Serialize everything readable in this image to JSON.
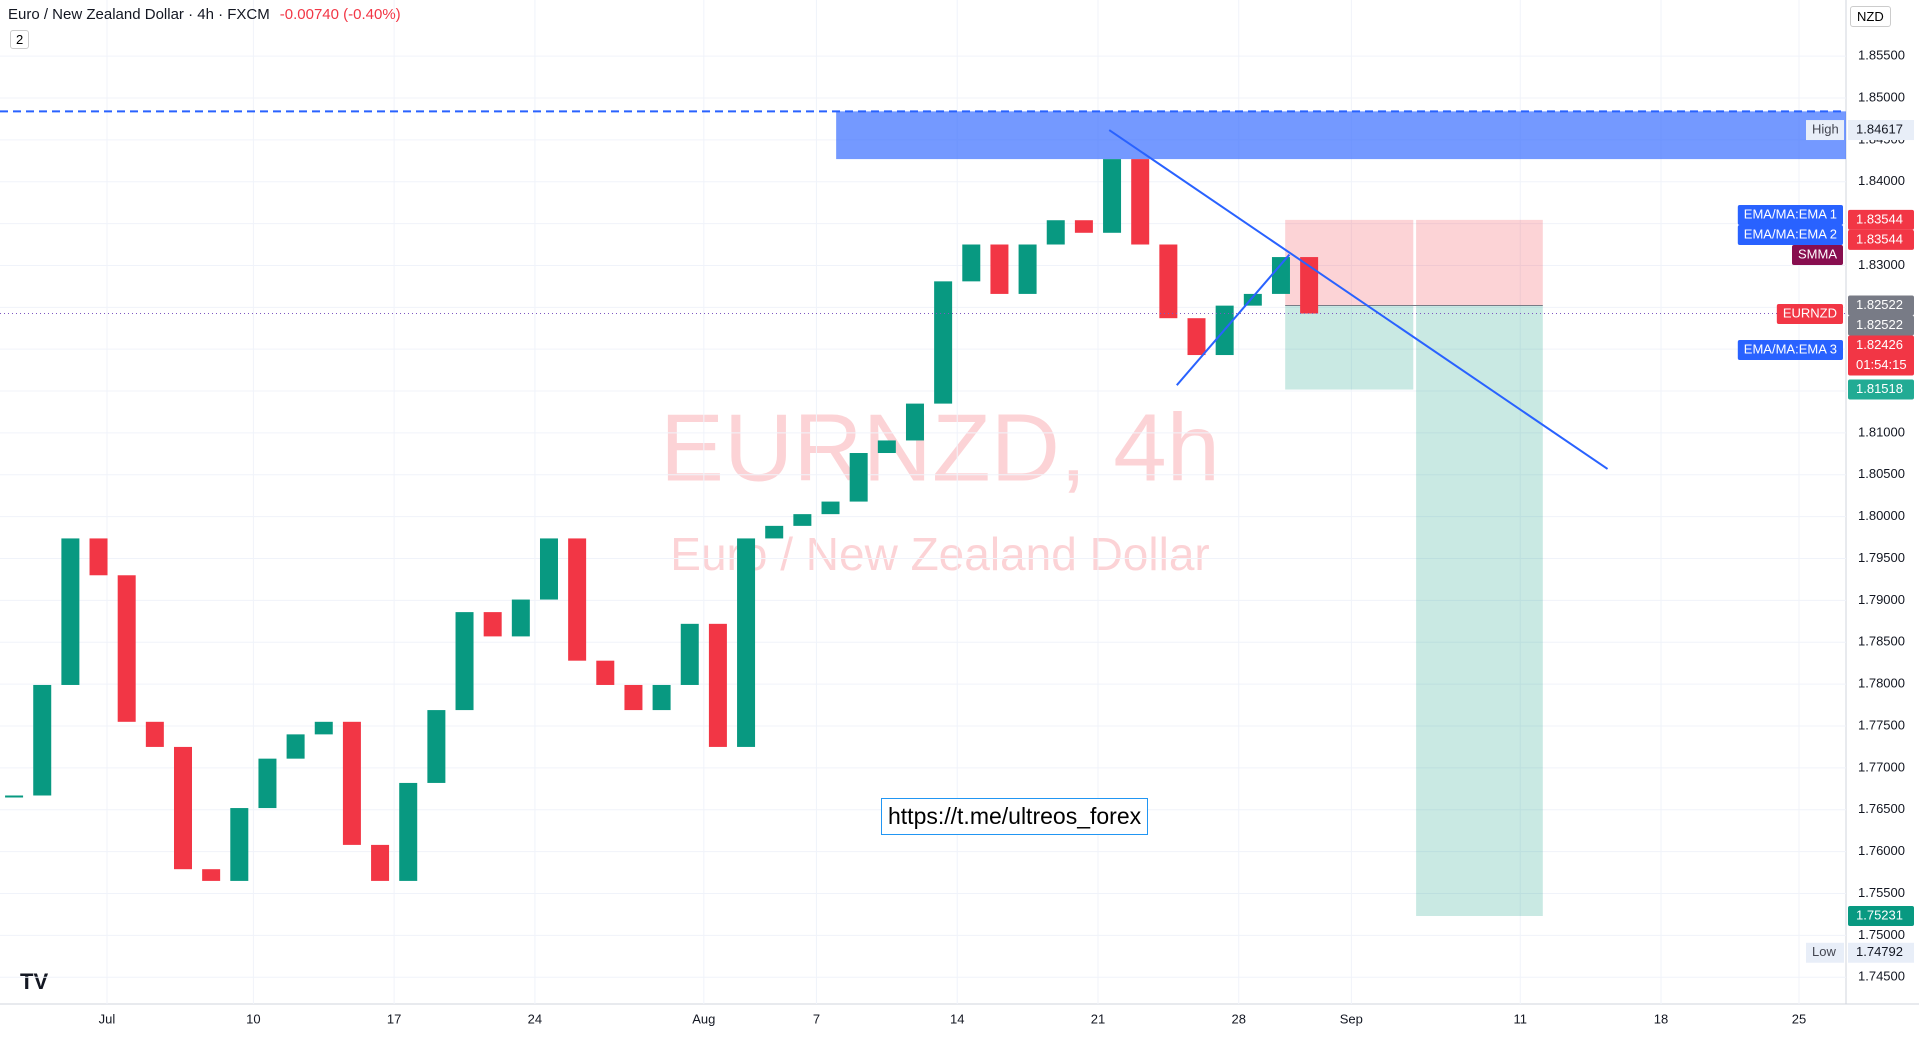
{
  "header": {
    "symbol": "Euro / New Zealand Dollar · 4h · FXCM",
    "change": "-0.00740 (-0.40%)",
    "indicator_count": "2",
    "currency": "NZD"
  },
  "chart_data": {
    "type": "candlestick",
    "watermark": "EURNZD, 4h",
    "watermark_subtitle": "Euro / New Zealand Dollar",
    "annotation": "https://t.me/ultreos_forex",
    "x": [
      0,
      1,
      2,
      3,
      4,
      5,
      6,
      7,
      8,
      9,
      10,
      11,
      12,
      13,
      14,
      15,
      16,
      17,
      18,
      19,
      20,
      21,
      22,
      23,
      24,
      25,
      26,
      27,
      28,
      29,
      30,
      31,
      32,
      33,
      34,
      35,
      36,
      37,
      38,
      39,
      40,
      41,
      42,
      43,
      44,
      45,
      46
    ],
    "series": [
      {
        "name": "EURNZD",
        "up_color": "#089981",
        "down_color": "#f23645",
        "values": [
          1.7667,
          1.7799,
          1.7974,
          1.793,
          1.7755,
          1.7725,
          1.7579,
          1.7565,
          1.7652,
          1.7711,
          1.774,
          1.7755,
          1.7608,
          1.7565,
          1.7682,
          1.7769,
          1.7886,
          1.7857,
          1.7901,
          1.7974,
          1.7828,
          1.7799,
          1.7769,
          1.7799,
          1.7872,
          1.7725,
          1.7974,
          1.7989,
          1.8003,
          1.8018,
          1.8076,
          1.8091,
          1.8135,
          1.8281,
          1.8325,
          1.8266,
          1.8325,
          1.8354,
          1.8339,
          1.8427,
          1.8325,
          1.8237,
          1.8193,
          1.8252,
          1.8266,
          1.831,
          1.82426
        ]
      }
    ],
    "xlim": [
      -0.5,
      65.07
    ],
    "xticks": [
      {
        "value": 3.3,
        "label": "Jul"
      },
      {
        "value": 8.5,
        "label": "10"
      },
      {
        "value": 13.5,
        "label": "17"
      },
      {
        "value": 18.5,
        "label": "24"
      },
      {
        "value": 24.5,
        "label": "Aug"
      },
      {
        "value": 28.5,
        "label": "7"
      },
      {
        "value": 33.5,
        "label": "14"
      },
      {
        "value": 38.5,
        "label": "21"
      },
      {
        "value": 43.5,
        "label": "28"
      },
      {
        "value": 47.5,
        "label": "Sep"
      },
      {
        "value": 53.5,
        "label": "11"
      },
      {
        "value": 58.5,
        "label": "18"
      },
      {
        "value": 63.4,
        "label": "25"
      }
    ],
    "ylim": [
      1.7418,
      1.8617
    ],
    "yticks": [
      {
        "value": 1.745,
        "label": "1.74500"
      },
      {
        "value": 1.75,
        "label": "1.75000"
      },
      {
        "value": 1.755,
        "label": "1.75500"
      },
      {
        "value": 1.76,
        "label": "1.76000"
      },
      {
        "value": 1.765,
        "label": "1.76500"
      },
      {
        "value": 1.77,
        "label": "1.77000"
      },
      {
        "value": 1.775,
        "label": "1.77500"
      },
      {
        "value": 1.78,
        "label": "1.78000"
      },
      {
        "value": 1.785,
        "label": "1.78500"
      },
      {
        "value": 1.79,
        "label": "1.79000"
      },
      {
        "value": 1.795,
        "label": "1.79500"
      },
      {
        "value": 1.8,
        "label": "1.80000"
      },
      {
        "value": 1.805,
        "label": "1.80500"
      },
      {
        "value": 1.81,
        "label": "1.81000"
      },
      {
        "value": 1.815,
        "label": "1.81500"
      },
      {
        "value": 1.82,
        "label": "1.82000"
      },
      {
        "value": 1.825,
        "label": "1.82500"
      },
      {
        "value": 1.83,
        "label": "1.83000"
      },
      {
        "value": 1.835,
        "label": "1.83500"
      },
      {
        "value": 1.84,
        "label": "1.84000"
      },
      {
        "value": 1.845,
        "label": "1.84500"
      },
      {
        "value": 1.85,
        "label": "1.85000"
      },
      {
        "value": 1.855,
        "label": "1.85500"
      }
    ],
    "grid": true,
    "zone": {
      "start": 29.2,
      "top": 1.8484,
      "bottom": 1.8427,
      "color": "#2962ff"
    },
    "trendlines": [
      {
        "x": [
          38.9,
          56.6
        ],
        "y": [
          1.84617,
          1.8057
        ]
      },
      {
        "x": [
          41.3,
          45.3
        ],
        "y": [
          1.8157,
          1.8313
        ]
      }
    ],
    "position": {
      "x": [
        45.15,
        49.7,
        49.8,
        54.3
      ],
      "stop": 1.83544,
      "entry": 1.82522,
      "target": 1.81518,
      "target2": 1.75231
    },
    "extremes": [
      {
        "name": "High",
        "value": 1.84617,
        "label": "1.84617"
      },
      {
        "name": "Low",
        "value": 1.74792,
        "label": "1.74792"
      }
    ],
    "price_badges": [
      {
        "value": 1.83544,
        "label": "1.83544",
        "color": "#f23645"
      },
      {
        "value": 1.83544,
        "label": "1.83544",
        "color": "#f23645"
      },
      {
        "value": 1.82522,
        "label": "1.82522",
        "color": "#787b86"
      },
      {
        "value": 1.82522,
        "label": "1.82522",
        "color": "#787b86"
      },
      {
        "value": 1.82426,
        "label": "1.82426",
        "color": "#f23645",
        "sublabel": "01:54:15"
      },
      {
        "value": 1.81518,
        "label": "1.81518",
        "color": "#22ab94"
      },
      {
        "value": 1.75231,
        "label": "1.75231",
        "color": "#089981"
      }
    ],
    "indicator_badges": [
      {
        "label": "EMA/MA:EMA 1",
        "color": "#2962ff"
      },
      {
        "label": "EMA/MA:EMA 2",
        "color": "#2962ff"
      },
      {
        "label": "SMMA",
        "color": "#880e4f"
      },
      {
        "label": "EURNZD",
        "color": "#f23645"
      },
      {
        "label": "EMA/MA:EMA 3",
        "color": "#2962ff"
      }
    ]
  }
}
